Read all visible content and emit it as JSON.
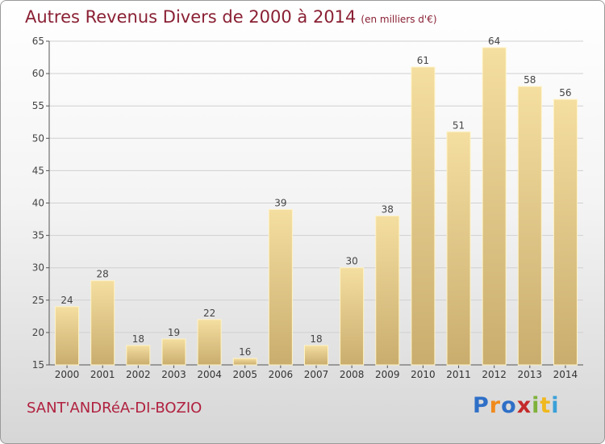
{
  "title": "Autres Revenus Divers de 2000 à 2014",
  "subtitle": "(en milliers d'€)",
  "commune": "SANT'ANDRéA-DI-BOZIO",
  "logo": {
    "letters": [
      "P",
      "r",
      "o",
      "x",
      "i",
      "t",
      "i"
    ],
    "colors": [
      "#2e6fc7",
      "#f08a1c",
      "#2e6fc7",
      "#c42a2a",
      "#7fb23a",
      "#f0b81c",
      "#3aa0d8"
    ]
  },
  "colors": {
    "bar_top": "#f4dea0",
    "bar_bottom": "#c9ad6e",
    "bar_edge": "#fff3c4",
    "title": "#8a2034",
    "grid": "#d0d0d0"
  },
  "chart_data": {
    "type": "bar",
    "title": "Autres Revenus Divers de 2000 à 2014",
    "subtitle": "(en milliers d'€)",
    "categories": [
      "2000",
      "2001",
      "2002",
      "2003",
      "2004",
      "2005",
      "2006",
      "2007",
      "2008",
      "2009",
      "2010",
      "2011",
      "2012",
      "2013",
      "2014"
    ],
    "values": [
      24,
      28,
      18,
      19,
      22,
      16,
      39,
      18,
      30,
      38,
      61,
      51,
      64,
      58,
      56
    ],
    "ylim": [
      15,
      65
    ],
    "yticks": [
      15,
      20,
      25,
      30,
      35,
      40,
      45,
      50,
      55,
      60,
      65
    ],
    "grid": true,
    "xlabel": "",
    "ylabel": ""
  }
}
